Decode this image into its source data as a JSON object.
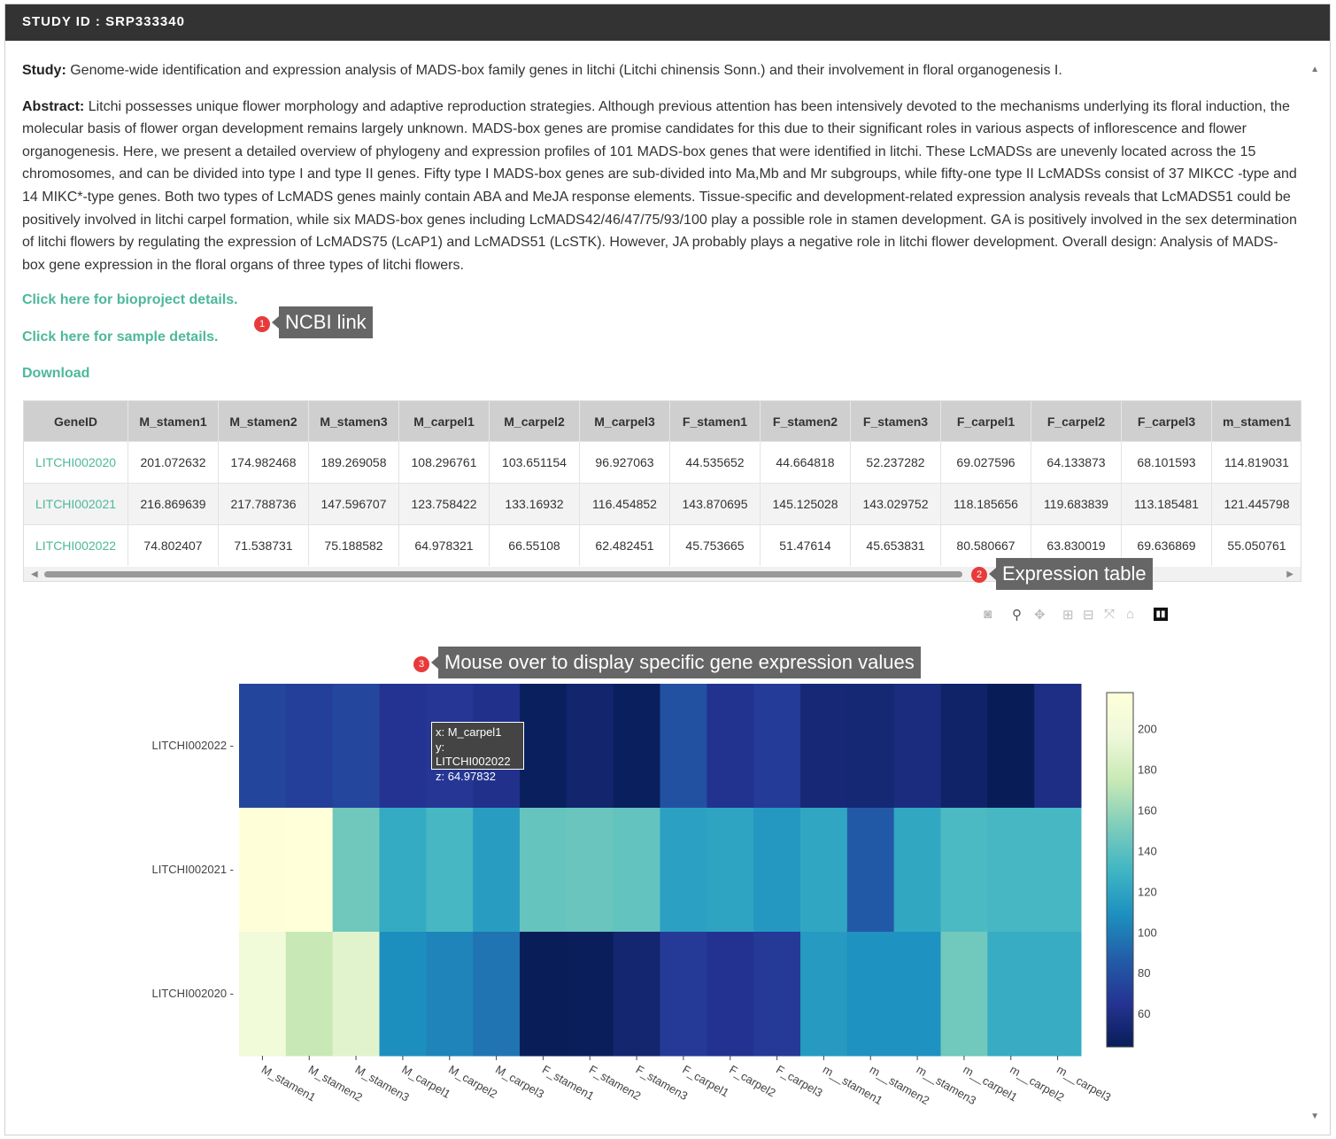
{
  "header": {
    "title": "STUDY ID : SRP333340"
  },
  "study": {
    "study_label": "Study:",
    "study_text": "Genome-wide identification and expression analysis of MADS-box family genes in litchi (Litchi chinensis Sonn.) and their involvement in floral organogenesis I.",
    "abstract_label": "Abstract:",
    "abstract_text": "Litchi possesses unique flower morphology and adaptive reproduction strategies. Although previous attention has been intensively devoted to the mechanisms underlying its floral induction, the molecular basis of flower organ development remains largely unknown. MADS-box genes are promise candidates for this due to their significant roles in various aspects of inflorescence and flower organogenesis. Here, we present a detailed overview of phylogeny and expression profiles of 101 MADS-box genes that were identified in litchi. These LcMADSs are unevenly located across the 15 chromosomes, and can be divided into type I and type II genes. Fifty type I MADS-box genes are sub-divided into Ma,Mb and Mr subgroups, while fifty-one type II LcMADSs consist of 37 MIKCC -type and 14 MIKC*-type genes. Both two types of LcMADS genes mainly contain ABA and MeJA response elements. Tissue-specific and development-related expression analysis reveals that LcMADS51 could be positively involved in litchi carpel formation, while six MADS-box genes including LcMADS42/46/47/75/93/100 play a possible role in stamen development. GA is positively involved in the sex determination of litchi flowers by regulating the expression of LcMADS75 (LcAP1) and LcMADS51 (LcSTK). However, JA probably plays a negative role in litchi flower development. Overall design: Analysis of MADS-box gene expression in the floral organs of three types of litchi flowers."
  },
  "links": {
    "bioproject": "Click here for bioproject details.",
    "sample": "Click here for sample details.",
    "download": "Download"
  },
  "annotations": {
    "a1_num": "1",
    "a1_text": "NCBI link",
    "a2_num": "2",
    "a2_text": "Expression table",
    "a3_num": "3",
    "a3_text": "Mouse over to display specific gene expression values"
  },
  "table": {
    "headers": [
      "GeneID",
      "M_stamen1",
      "M_stamen2",
      "M_stamen3",
      "M_carpel1",
      "M_carpel2",
      "M_carpel3",
      "F_stamen1",
      "F_stamen2",
      "F_stamen3",
      "F_carpel1",
      "F_carpel2",
      "F_carpel3",
      "m_stamen1"
    ],
    "rows": [
      [
        "LITCHI002020",
        "201.072632",
        "174.982468",
        "189.269058",
        "108.296761",
        "103.651154",
        "96.927063",
        "44.535652",
        "44.664818",
        "52.237282",
        "69.027596",
        "64.133873",
        "68.101593",
        "114.819031"
      ],
      [
        "LITCHI002021",
        "216.869639",
        "217.788736",
        "147.596707",
        "123.758422",
        "133.16932",
        "116.454852",
        "143.870695",
        "145.125028",
        "143.029752",
        "118.185656",
        "119.683839",
        "113.185481",
        "121.445798"
      ],
      [
        "LITCHI002022",
        "74.802407",
        "71.538731",
        "75.188582",
        "64.978321",
        "66.55108",
        "62.482451",
        "45.753665",
        "51.47614",
        "45.653831",
        "80.580667",
        "63.830019",
        "69.636869",
        "55.050761"
      ]
    ]
  },
  "modebar": [
    "camera-icon",
    "zoom-icon",
    "pan-icon",
    "zoom-in-icon",
    "zoom-out-icon",
    "autoscale-icon",
    "reset-axes-icon",
    "plotly-logo-icon"
  ],
  "hover": {
    "x": "x: M_carpel1",
    "y": "y: LITCHI002022",
    "z": "z: 64.97832"
  },
  "chart_data": {
    "type": "heatmap",
    "x": [
      "M_stamen1",
      "M_stamen2",
      "M_stamen3",
      "M_carpel1",
      "M_carpel2",
      "M_carpel3",
      "F_stamen1",
      "F_stamen2",
      "F_stamen3",
      "F_carpel1",
      "F_carpel2",
      "F_carpel3",
      "m__stamen1",
      "m__stamen2",
      "m__stamen3",
      "m__carpel1",
      "m__carpel2",
      "m__carpel3"
    ],
    "y": [
      "LITCHI002022",
      "LITCHI002021",
      "LITCHI002020"
    ],
    "z": [
      [
        74.8,
        71.54,
        75.19,
        64.98,
        66.55,
        62.48,
        45.75,
        51.48,
        45.65,
        80.58,
        63.83,
        69.64,
        55.05,
        54.0,
        58.0,
        50.0,
        44.0,
        60.0
      ],
      [
        216.87,
        217.79,
        147.6,
        123.76,
        133.17,
        116.45,
        143.87,
        145.13,
        143.03,
        118.19,
        119.68,
        113.19,
        121.45,
        85.0,
        122.0,
        135.0,
        133.0,
        133.0
      ],
      [
        201.07,
        174.98,
        189.27,
        108.3,
        103.65,
        96.93,
        44.54,
        44.66,
        52.24,
        69.03,
        64.13,
        68.1,
        114.82,
        110.0,
        110.0,
        148.0,
        125.0,
        125.0
      ]
    ],
    "colorscale": "YlGnBu",
    "zrange": [
      44,
      218
    ],
    "colorbar_ticks": [
      200,
      180,
      160,
      140,
      120,
      100,
      80,
      60
    ]
  },
  "colors": {
    "accent": "#4db89a",
    "header_bg": "#333333",
    "badge": "#e83a3a",
    "tooltip": "#666666"
  }
}
